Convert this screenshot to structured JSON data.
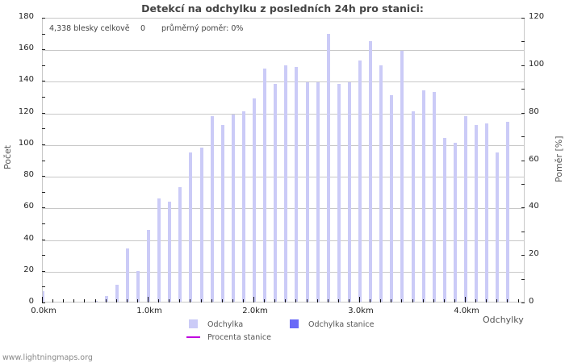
{
  "title": "Detekcí na odchylku z posledních 24h pro stanici:",
  "info": {
    "total": "4,338 blesky celkově",
    "station": "0",
    "ratio": "průměrný poměr: 0%"
  },
  "axes": {
    "y_left_label": "Počet",
    "y_right_label": "Poměr [%]",
    "x_label": "Odchylky",
    "y_left_ticks": [
      "0",
      "20",
      "40",
      "60",
      "80",
      "100",
      "120",
      "140",
      "160",
      "180"
    ],
    "y_right_ticks": [
      "0",
      "20",
      "40",
      "60",
      "80",
      "100",
      "120"
    ],
    "x_ticks": [
      "0.0km",
      "1.0km",
      "2.0km",
      "3.0km",
      "4.0km"
    ]
  },
  "legend": {
    "item1": "Odchylka",
    "item2": "Odchylka stanice",
    "item3": "Procenta stanice"
  },
  "colors": {
    "bar": "#cbcbf7",
    "station_bar": "#6a6af7",
    "station_line": "#c000e0"
  },
  "footer": "www.lightningmaps.org",
  "chart_data": {
    "type": "bar",
    "title": "Detekcí na odchylku z posledních 24h pro stanici:",
    "xlabel": "Odchylky",
    "ylabel": "Počet",
    "ylabel_right": "Poměr [%]",
    "ylim": [
      0,
      180
    ],
    "ylim_right": [
      0,
      120
    ],
    "x_tick_labels": [
      "0.0km",
      "1.0km",
      "2.0km",
      "3.0km",
      "4.0km"
    ],
    "grid": true,
    "legend_position": "bottom",
    "categories": [
      "0.0",
      "0.1",
      "0.2",
      "0.3",
      "0.4",
      "0.5",
      "0.6",
      "0.7",
      "0.8",
      "0.9",
      "1.0",
      "1.1",
      "1.2",
      "1.3",
      "1.4",
      "1.5",
      "1.6",
      "1.7",
      "1.8",
      "1.9",
      "2.0",
      "2.1",
      "2.2",
      "2.3",
      "2.4",
      "2.5",
      "2.6",
      "2.7",
      "2.8",
      "2.9",
      "3.0",
      "3.1",
      "3.2",
      "3.3",
      "3.4",
      "3.5",
      "3.6",
      "3.7",
      "3.8",
      "3.9",
      "4.0",
      "4.1",
      "4.2",
      "4.3",
      "4.4"
    ],
    "series": [
      {
        "name": "Odchylka",
        "values": [
          7,
          0,
          0,
          0,
          0,
          1,
          4,
          11,
          34,
          20,
          46,
          66,
          64,
          73,
          95,
          98,
          118,
          112,
          119,
          121,
          129,
          148,
          138,
          150,
          149,
          139,
          139,
          170,
          138,
          139,
          153,
          165,
          150,
          131,
          159,
          121,
          134,
          133,
          104,
          101,
          118,
          112,
          113,
          95,
          114
        ]
      },
      {
        "name": "Odchylka stanice",
        "values": [
          0,
          0,
          0,
          0,
          0,
          0,
          0,
          0,
          0,
          0,
          0,
          0,
          0,
          0,
          0,
          0,
          0,
          0,
          0,
          0,
          0,
          0,
          0,
          0,
          0,
          0,
          0,
          0,
          0,
          0,
          0,
          0,
          0,
          0,
          0,
          0,
          0,
          0,
          0,
          0,
          0,
          0,
          0,
          0,
          0
        ]
      },
      {
        "name": "Procenta stanice",
        "values": [
          0,
          0,
          0,
          0,
          0,
          0,
          0,
          0,
          0,
          0,
          0,
          0,
          0,
          0,
          0,
          0,
          0,
          0,
          0,
          0,
          0,
          0,
          0,
          0,
          0,
          0,
          0,
          0,
          0,
          0,
          0,
          0,
          0,
          0,
          0,
          0,
          0,
          0,
          0,
          0,
          0,
          0,
          0,
          0,
          0
        ]
      }
    ]
  }
}
